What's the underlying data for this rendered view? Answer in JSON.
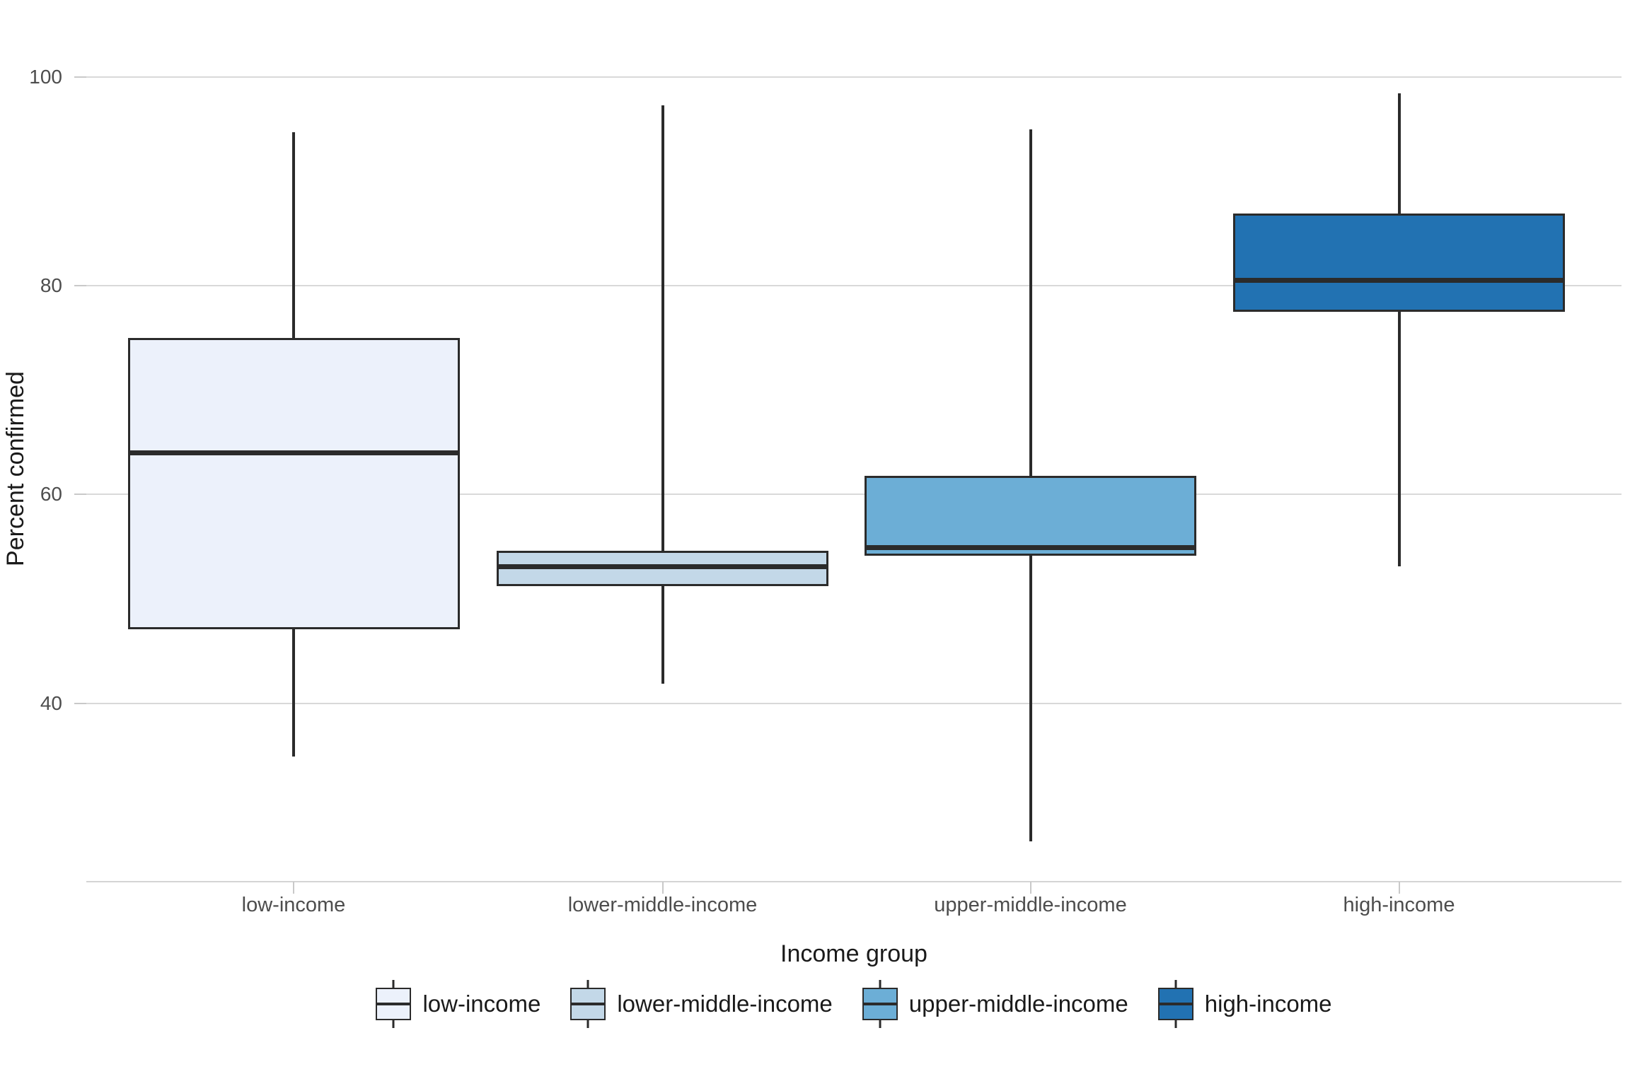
{
  "chart_data": {
    "type": "box",
    "title": "",
    "xlabel": "Income group",
    "ylabel": "Percent confirmed",
    "ylim": [
      23,
      107
    ],
    "yticks": [
      40,
      60,
      80,
      100
    ],
    "grid": "horizontal-major-only",
    "legend_position": "bottom",
    "categories": [
      "low-income",
      "lower-middle-income",
      "upper-middle-income",
      "high-income"
    ],
    "series": [
      {
        "name": "low-income",
        "fill": "#ecf1fb",
        "min": 34.9,
        "q1": 47.1,
        "median": 64.0,
        "q3": 75.0,
        "max": 94.7
      },
      {
        "name": "lower-middle-income",
        "fill": "#c3d8e8",
        "min": 41.9,
        "q1": 51.2,
        "median": 53.1,
        "q3": 54.6,
        "max": 97.3
      },
      {
        "name": "upper-middle-income",
        "fill": "#6caed6",
        "min": 26.8,
        "q1": 54.1,
        "median": 54.9,
        "q3": 61.8,
        "max": 95.0
      },
      {
        "name": "high-income",
        "fill": "#2272b2",
        "min": 53.1,
        "q1": 77.5,
        "median": 80.5,
        "q3": 86.9,
        "max": 98.4
      }
    ],
    "box_border_color": "#2b2b2b",
    "gridline_color": "#d9d9d9"
  },
  "legend": {
    "items": [
      "low-income",
      "lower-middle-income",
      "upper-middle-income",
      "high-income"
    ]
  }
}
